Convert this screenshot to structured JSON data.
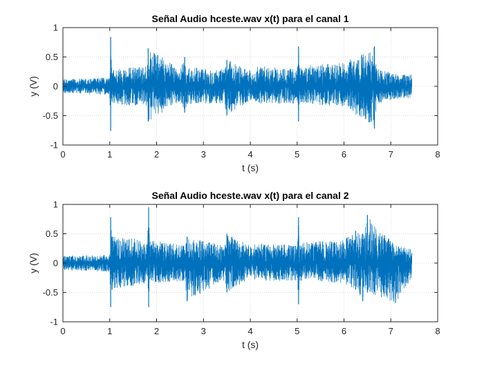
{
  "chart_data": [
    {
      "type": "line",
      "title": "Señal Audio hceste.wav x(t) para el canal 1",
      "xlabel": "t (s)",
      "ylabel": "y (V)",
      "xlim": [
        0,
        8
      ],
      "ylim": [
        -1,
        1
      ],
      "xticks": [
        0,
        1,
        2,
        3,
        4,
        5,
        6,
        7,
        8
      ],
      "yticks": [
        -1,
        -0.5,
        0,
        0.5,
        1
      ],
      "grid": true,
      "color": "#0072BD",
      "series": [
        {
          "x": [
            0,
            1.0,
            1.02,
            1.03,
            1.05,
            1.8,
            1.82,
            2.5,
            2.6,
            2.65,
            3.45,
            3.5,
            4.0,
            4.05,
            4.1,
            5.0,
            5.03,
            5.05,
            6.0,
            6.65,
            6.7,
            7.2,
            7.45
          ],
          "amp_upper": [
            0.12,
            0.15,
            0.84,
            0.45,
            0.3,
            0.35,
            0.65,
            0.3,
            0.5,
            0.32,
            0.3,
            0.45,
            0.28,
            0.2,
            0.35,
            0.3,
            0.68,
            0.35,
            0.4,
            0.68,
            0.3,
            0.2,
            0.22
          ],
          "amp_lower": [
            -0.12,
            -0.15,
            -0.76,
            -0.4,
            -0.3,
            -0.35,
            -0.6,
            -0.25,
            -0.45,
            -0.3,
            -0.3,
            -0.5,
            -0.25,
            -0.2,
            -0.3,
            -0.3,
            -0.6,
            -0.3,
            -0.35,
            -0.72,
            -0.3,
            -0.2,
            -0.22
          ]
        }
      ]
    },
    {
      "type": "line",
      "title": "Señal Audio hceste.wav x(t) para el canal 2",
      "xlabel": "t (s)",
      "ylabel": "y (V)",
      "xlim": [
        0,
        8
      ],
      "ylim": [
        -1,
        1
      ],
      "xticks": [
        0,
        1,
        2,
        3,
        4,
        5,
        6,
        7,
        8
      ],
      "yticks": [
        -1,
        -0.5,
        0,
        0.5,
        1
      ],
      "grid": true,
      "color": "#0072BD",
      "series": [
        {
          "x": [
            0,
            1.0,
            1.02,
            1.05,
            1.8,
            1.83,
            1.85,
            2.6,
            2.65,
            3.45,
            3.5,
            4.0,
            4.05,
            4.1,
            5.0,
            5.03,
            5.05,
            6.0,
            6.25,
            6.4,
            6.5,
            7.1,
            7.45
          ],
          "amp_upper": [
            0.12,
            0.15,
            0.78,
            0.45,
            0.4,
            0.95,
            0.4,
            0.3,
            0.45,
            0.3,
            0.5,
            0.3,
            0.2,
            0.35,
            0.3,
            0.78,
            0.35,
            0.4,
            0.55,
            0.5,
            0.82,
            0.3,
            0.25
          ],
          "amp_lower": [
            -0.12,
            -0.15,
            -0.75,
            -0.45,
            -0.35,
            -0.75,
            -0.35,
            -0.3,
            -0.65,
            -0.3,
            -0.5,
            -0.25,
            -0.2,
            -0.3,
            -0.3,
            -0.7,
            -0.3,
            -0.35,
            -0.45,
            -0.65,
            -0.5,
            -0.68,
            -0.25
          ]
        }
      ]
    }
  ]
}
